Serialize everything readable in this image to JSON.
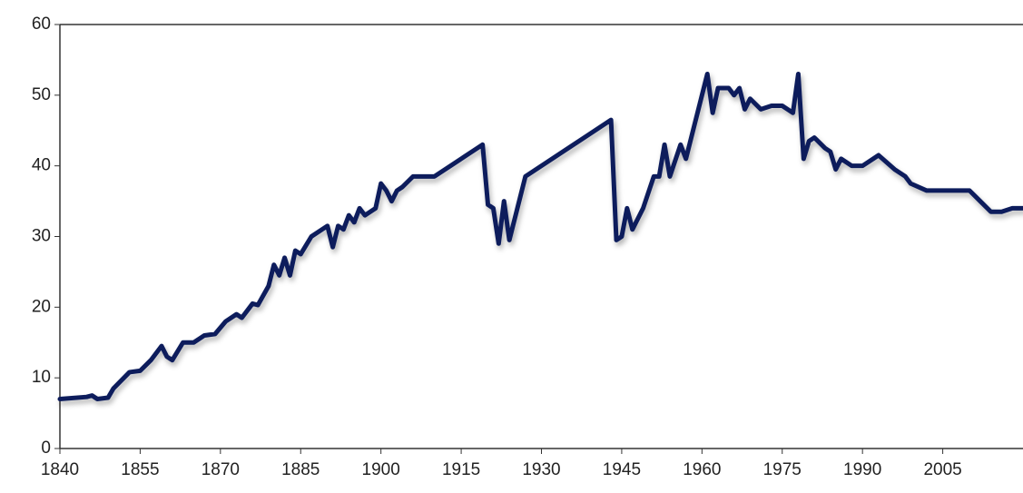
{
  "chart_data": {
    "type": "line",
    "x": [
      1840,
      1845,
      1846,
      1847,
      1849,
      1850,
      1853,
      1855,
      1857,
      1859,
      1860,
      1861,
      1863,
      1865,
      1867,
      1869,
      1871,
      1873,
      1874,
      1876,
      1877,
      1879,
      1880,
      1881,
      1882,
      1883,
      1884,
      1885,
      1887,
      1889,
      1890,
      1891,
      1892,
      1893,
      1894,
      1895,
      1896,
      1897,
      1899,
      1900,
      1901,
      1902,
      1903,
      1904,
      1906,
      1910,
      1919,
      1920,
      1921,
      1922,
      1923,
      1924,
      1927,
      1943,
      1944,
      1945,
      1946,
      1947,
      1949,
      1951,
      1952,
      1953,
      1954,
      1956,
      1957,
      1958,
      1960,
      1961,
      1962,
      1963,
      1965,
      1966,
      1967,
      1968,
      1969,
      1971,
      1973,
      1975,
      1977,
      1978,
      1979,
      1980,
      1981,
      1983,
      1984,
      1985,
      1986,
      1988,
      1990,
      1993,
      1996,
      1998,
      1999,
      2002,
      2010,
      2012,
      2014,
      2016,
      2018,
      2020
    ],
    "series": [
      {
        "color": "#0d1f5c",
        "values": [
          7,
          7.3,
          7.5,
          7,
          7.2,
          8.5,
          10.8,
          11,
          12.5,
          14.5,
          13,
          12.5,
          15,
          15,
          16,
          16.2,
          18,
          19,
          18.5,
          20.5,
          20.3,
          23,
          26,
          24.5,
          27,
          24.5,
          28,
          27.5,
          30,
          31,
          31.5,
          28.5,
          31.5,
          31,
          33,
          32,
          34,
          33,
          34,
          37.5,
          36.5,
          35,
          36.5,
          37,
          38.5,
          38.5,
          43,
          34.5,
          34,
          29,
          35,
          29.5,
          38.5,
          46.5,
          29.5,
          30,
          34,
          31,
          34,
          38.5,
          38.5,
          43,
          38.5,
          43,
          41,
          44,
          50,
          53,
          47.5,
          51,
          51,
          50,
          51,
          48,
          49.5,
          48,
          48.5,
          48.5,
          47.5,
          53,
          41,
          43.5,
          44,
          42.5,
          42,
          39.5,
          41,
          40,
          40,
          41.5,
          39.5,
          38.5,
          37.5,
          36.5,
          36.5,
          35,
          33.5,
          33.5,
          34,
          34
        ]
      }
    ],
    "xlim": [
      1840,
      2020
    ],
    "xticks": [
      1840,
      1855,
      1870,
      1885,
      1900,
      1915,
      1930,
      1945,
      1960,
      1975,
      1990,
      2005
    ],
    "ylim": [
      0,
      60
    ],
    "yticks": [
      0,
      10,
      20,
      30,
      40,
      50,
      60
    ]
  }
}
